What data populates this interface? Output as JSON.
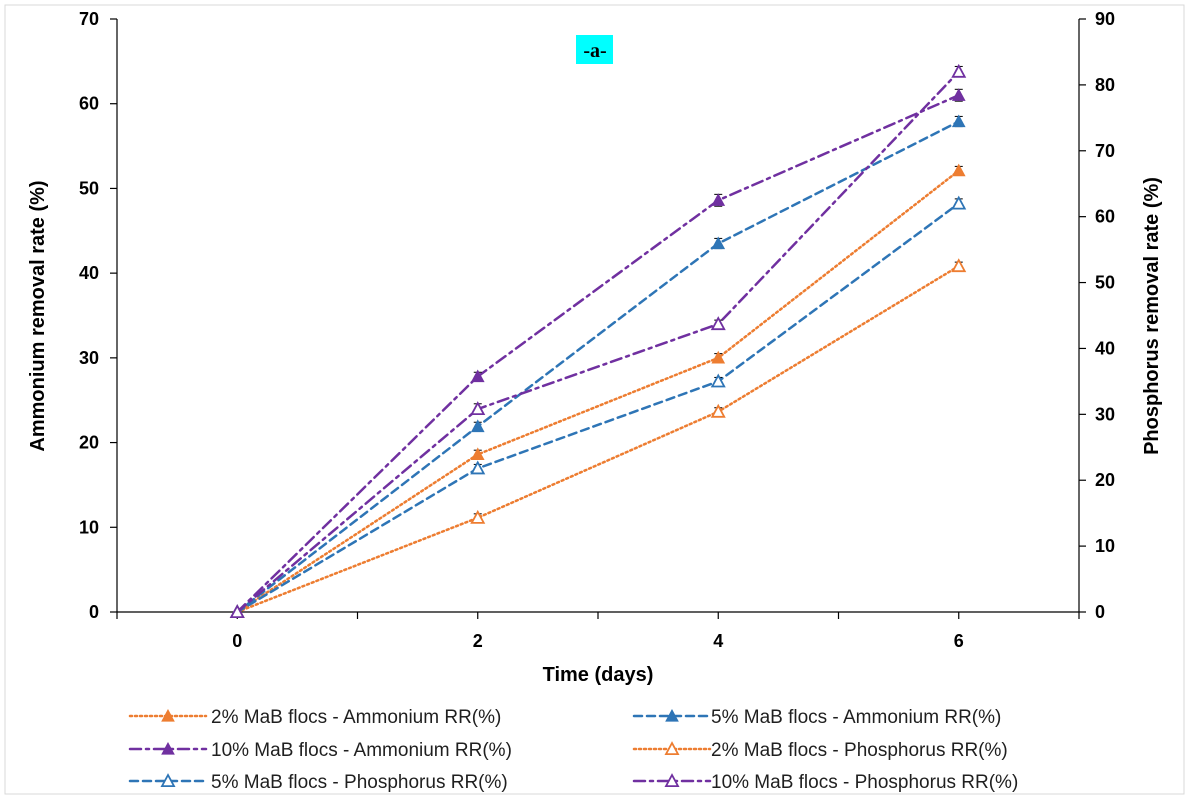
{
  "chart_data": {
    "type": "line",
    "title": "-a-",
    "title_background": "#00ffff",
    "xlabel": "Time (days)",
    "ylabel_left": "Ammonium  removal rate (%)",
    "ylabel_right": "Phosphorus removal rate (%)",
    "x": [
      0,
      2,
      4,
      6
    ],
    "x_ticks": [
      "0",
      "2",
      "4",
      "6"
    ],
    "xlim": [
      -1,
      7
    ],
    "ylim_left": [
      0,
      70
    ],
    "ylim_right": [
      0,
      90
    ],
    "y_ticks_left": [
      "0",
      "10",
      "20",
      "30",
      "40",
      "50",
      "60",
      "70"
    ],
    "y_ticks_right": [
      "0",
      "10",
      "20",
      "30",
      "40",
      "50",
      "60",
      "70",
      "80",
      "90"
    ],
    "grid": false,
    "legend_position": "bottom",
    "series": [
      {
        "name": "2% MaB flocs - Ammonium RR(%)",
        "axis": "left",
        "values": [
          0,
          18.6,
          30.0,
          52.1
        ],
        "errors": [
          0,
          0.5,
          0.5,
          0.5
        ],
        "color": "#ed7d31",
        "dash": "dotted",
        "marker": "filled-triangle"
      },
      {
        "name": "5% MaB flocs - Ammonium RR(%)",
        "axis": "left",
        "values": [
          0,
          21.9,
          43.5,
          57.9
        ],
        "errors": [
          0,
          0.5,
          0.6,
          0.6
        ],
        "color": "#2e75b6",
        "dash": "dashed",
        "marker": "filled-triangle"
      },
      {
        "name": "10% MaB flocs - Ammonium RR(%)",
        "axis": "left",
        "values": [
          0,
          27.8,
          48.6,
          61.0
        ],
        "errors": [
          0,
          0.5,
          0.7,
          0.7
        ],
        "color": "#7030a0",
        "dash": "dash-dot",
        "marker": "filled-triangle"
      },
      {
        "name": "2% MaB flocs - Phosphorus RR(%)",
        "axis": "right",
        "values": [
          0,
          14.3,
          30.4,
          52.5
        ],
        "errors": [
          0,
          0.6,
          0.6,
          0.6
        ],
        "color": "#ed7d31",
        "dash": "dotted",
        "marker": "open-triangle"
      },
      {
        "name": "5% MaB flocs - Phosphorus RR(%)",
        "axis": "right",
        "values": [
          0,
          21.8,
          35.0,
          62.0
        ],
        "errors": [
          0,
          0.6,
          0.6,
          0.7
        ],
        "color": "#2e75b6",
        "dash": "dashed",
        "marker": "open-triangle"
      },
      {
        "name": "10% MaB flocs - Phosphorus RR(%)",
        "axis": "right",
        "values": [
          0,
          30.8,
          43.7,
          82.0
        ],
        "errors": [
          0,
          0.8,
          0.6,
          0.8
        ],
        "color": "#7030a0",
        "dash": "dash-dot",
        "marker": "open-triangle"
      }
    ]
  }
}
